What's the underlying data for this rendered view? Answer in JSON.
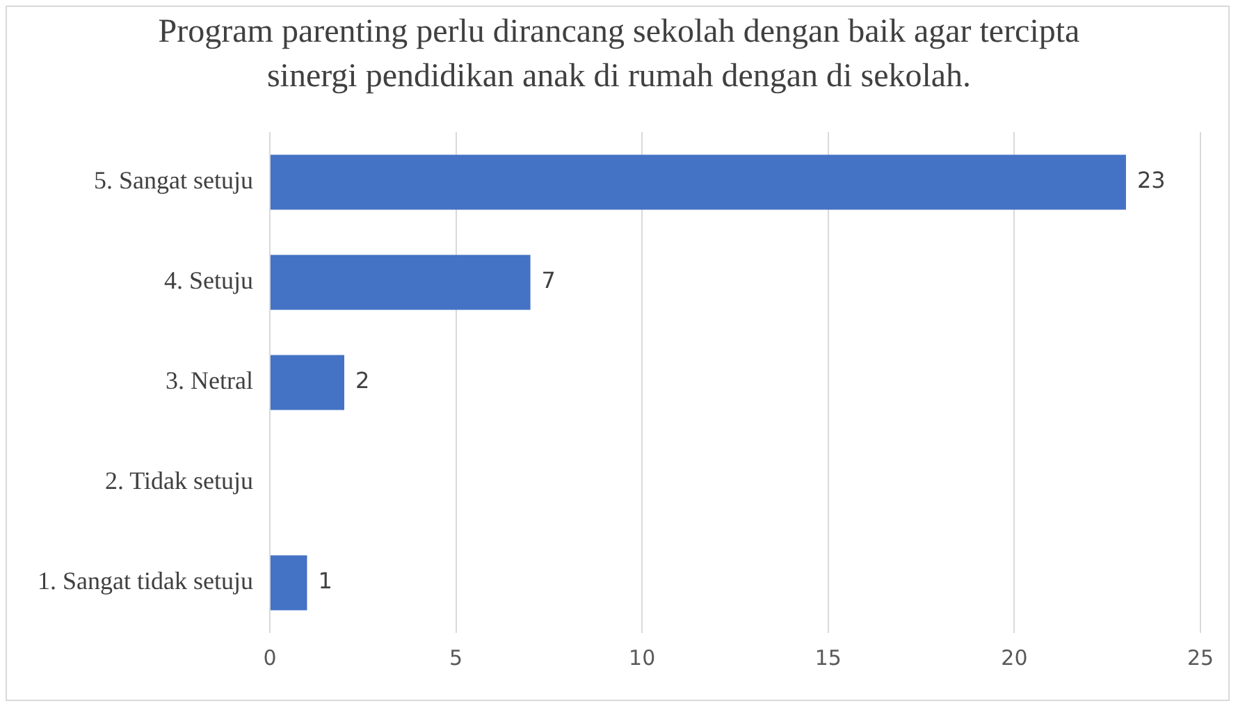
{
  "chart_data": {
    "type": "bar",
    "orientation": "horizontal",
    "title": "Program parenting perlu dirancang sekolah dengan baik agar tercipta sinergi pendidikan anak di rumah dengan di sekolah.",
    "categories": [
      "5. Sangat setuju",
      "4. Setuju",
      "3. Netral",
      "2. Tidak setuju",
      "1. Sangat tidak setuju"
    ],
    "values": [
      23,
      7,
      2,
      0,
      1
    ],
    "value_labels": [
      "23",
      "7",
      "2",
      null,
      "1"
    ],
    "color": "#4472c4",
    "xlim": [
      0,
      25
    ],
    "xticks": [
      0,
      5,
      10,
      15,
      20,
      25
    ],
    "grid": "x",
    "legend": false
  }
}
